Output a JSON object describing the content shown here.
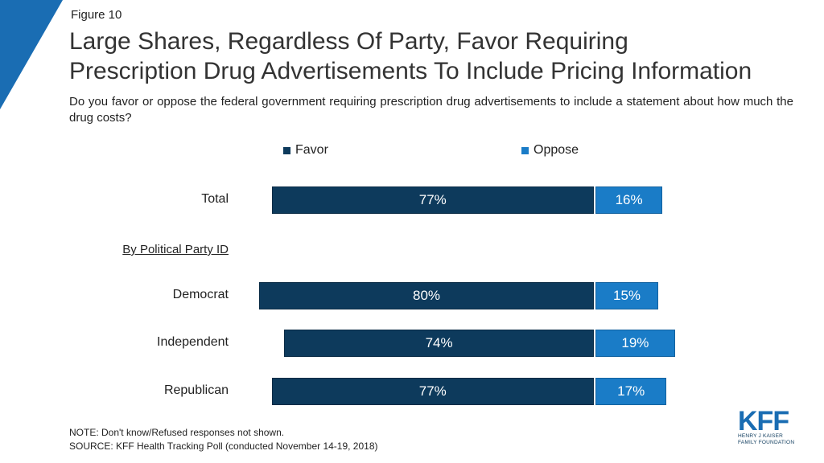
{
  "figure_label": "Figure 10",
  "title_line1": "Large Shares, Regardless Of Party, Favor Requiring",
  "title_line2": "Prescription Drug Advertisements To Include Pricing Information",
  "subtitle": "Do you favor or oppose the federal government requiring prescription drug advertisements to include a statement about how much the drug costs?",
  "colors": {
    "favor": "#0d3a5c",
    "oppose": "#1a7cc7",
    "corner": "#1a6db3"
  },
  "chart_data": {
    "type": "bar",
    "orientation": "horizontal",
    "stacked": true,
    "group_header": "By Political Party ID",
    "categories": [
      "Total",
      "Democrat",
      "Independent",
      "Republican"
    ],
    "series": [
      {
        "name": "Favor",
        "values": [
          77,
          80,
          74,
          77
        ],
        "labels": [
          "77%",
          "80%",
          "74%",
          "77%"
        ]
      },
      {
        "name": "Oppose",
        "values": [
          16,
          15,
          19,
          17
        ],
        "labels": [
          "16%",
          "15%",
          "19%",
          "17%"
        ]
      }
    ],
    "legend_position": "top"
  },
  "footer": {
    "note": "NOTE: Don't know/Refused  responses not shown.",
    "source": "SOURCE: KFF Health Tracking Poll (conducted November 14-19, 2018)"
  },
  "logo": {
    "wordmark": "KFF",
    "line1": "HENRY J KAISER",
    "line2": "FAMILY FOUNDATION"
  }
}
